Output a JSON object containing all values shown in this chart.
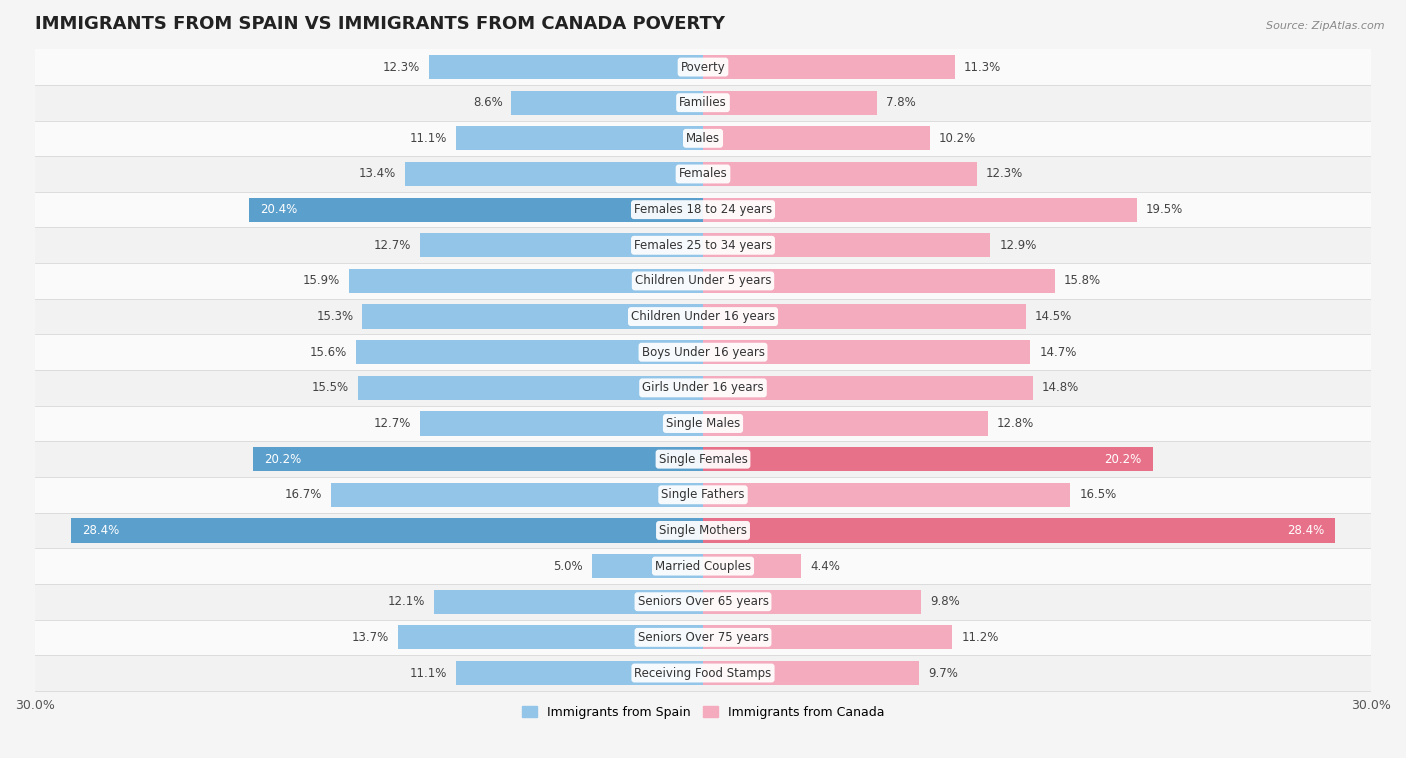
{
  "title": "IMMIGRANTS FROM SPAIN VS IMMIGRANTS FROM CANADA POVERTY",
  "source": "Source: ZipAtlas.com",
  "categories": [
    "Poverty",
    "Families",
    "Males",
    "Females",
    "Females 18 to 24 years",
    "Females 25 to 34 years",
    "Children Under 5 years",
    "Children Under 16 years",
    "Boys Under 16 years",
    "Girls Under 16 years",
    "Single Males",
    "Single Females",
    "Single Fathers",
    "Single Mothers",
    "Married Couples",
    "Seniors Over 65 years",
    "Seniors Over 75 years",
    "Receiving Food Stamps"
  ],
  "spain_values": [
    12.3,
    8.6,
    11.1,
    13.4,
    20.4,
    12.7,
    15.9,
    15.3,
    15.6,
    15.5,
    12.7,
    20.2,
    16.7,
    28.4,
    5.0,
    12.1,
    13.7,
    11.1
  ],
  "canada_values": [
    11.3,
    7.8,
    10.2,
    12.3,
    19.5,
    12.9,
    15.8,
    14.5,
    14.7,
    14.8,
    12.8,
    20.2,
    16.5,
    28.4,
    4.4,
    9.8,
    11.2,
    9.7
  ],
  "spain_color": "#92C5E8",
  "canada_color": "#F4ABBE",
  "spain_label": "Immigrants from Spain",
  "canada_label": "Immigrants from Canada",
  "xlim": 30.0,
  "row_color_odd": "#f2f2f2",
  "row_color_even": "#fafafa",
  "title_fontsize": 13,
  "label_fontsize": 8.5,
  "value_fontsize": 8.5,
  "highlight_color_spain": "#5B9FCC",
  "highlight_color_canada": "#E8718A",
  "highlight_threshold": 19.9
}
